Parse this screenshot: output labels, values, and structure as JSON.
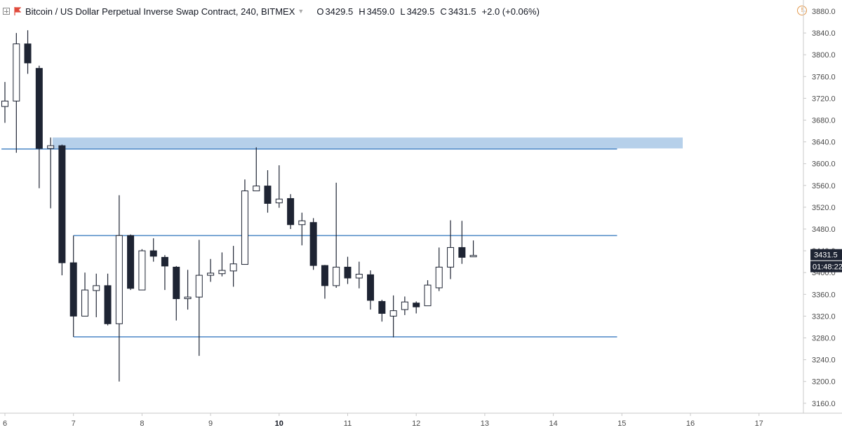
{
  "header": {
    "title": "Bitcoin / US Dollar Perpetual Inverse Swap Contract, 240, BITMEX",
    "o_label": "O",
    "o_value": "3429.5",
    "h_label": "H",
    "h_value": "3459.0",
    "l_label": "L",
    "l_value": "3429.5",
    "c_label": "C",
    "c_value": "3431.5",
    "change": "+2.0 (+0.06%)",
    "alert_icon_text": "!"
  },
  "price_tag": {
    "price": "3431.5",
    "countdown": "01:48:22",
    "value": 3431.5
  },
  "colors": {
    "bear": "#1e2433",
    "bull": "#ffffff",
    "line": "#4a86c5",
    "zone": "#b6d0ea",
    "accent_flag": "#e04a3c",
    "alert": "#e39a4e"
  },
  "chart_data": {
    "type": "candlestick",
    "title": "Bitcoin / US Dollar Perpetual Inverse Swap Contract, 240, BITMEX",
    "ylim": [
      3140,
      3900
    ],
    "y_ticks": [
      "3880.0",
      "3840.0",
      "3800.0",
      "3760.0",
      "3720.0",
      "3680.0",
      "3640.0",
      "3600.0",
      "3560.0",
      "3520.0",
      "3480.0",
      "3440.0",
      "3400.0",
      "3360.0",
      "3320.0",
      "3280.0",
      "3240.0",
      "3200.0",
      "3160.0"
    ],
    "y_tick_values": [
      3880,
      3840,
      3800,
      3760,
      3720,
      3680,
      3640,
      3600,
      3560,
      3520,
      3480,
      3440,
      3400,
      3360,
      3320,
      3280,
      3240,
      3200,
      3160
    ],
    "x_ticks": [
      {
        "label": "6",
        "x": 0.0,
        "bold": false
      },
      {
        "label": "7",
        "x": 1.0,
        "bold": false
      },
      {
        "label": "8",
        "x": 2.0,
        "bold": false
      },
      {
        "label": "9",
        "x": 3.0,
        "bold": false
      },
      {
        "label": "10",
        "x": 4.0,
        "bold": true
      },
      {
        "label": "11",
        "x": 5.0,
        "bold": false
      },
      {
        "label": "12",
        "x": 6.0,
        "bold": false
      },
      {
        "label": "13",
        "x": 7.0,
        "bold": false
      },
      {
        "label": "14",
        "x": 8.0,
        "bold": false
      },
      {
        "label": "15",
        "x": 9.0,
        "bold": false
      },
      {
        "label": "16",
        "x": 10.0,
        "bold": false
      },
      {
        "label": "17",
        "x": 11.0,
        "bold": false
      }
    ],
    "candles": [
      {
        "x": 0.0,
        "o": 3705,
        "h": 3750,
        "l": 3675,
        "c": 3715
      },
      {
        "x": 0.167,
        "o": 3715,
        "h": 3840,
        "l": 3620,
        "c": 3820
      },
      {
        "x": 0.333,
        "o": 3820,
        "h": 3845,
        "l": 3765,
        "c": 3785
      },
      {
        "x": 0.5,
        "o": 3775,
        "h": 3780,
        "l": 3555,
        "c": 3628
      },
      {
        "x": 0.667,
        "o": 3628,
        "h": 3648,
        "l": 3518,
        "c": 3633
      },
      {
        "x": 0.833,
        "o": 3633,
        "h": 3635,
        "l": 3395,
        "c": 3418
      },
      {
        "x": 1.0,
        "o": 3418,
        "h": 3468,
        "l": 3282,
        "c": 3320
      },
      {
        "x": 1.167,
        "o": 3320,
        "h": 3400,
        "l": 3320,
        "c": 3368
      },
      {
        "x": 1.333,
        "o": 3367,
        "h": 3398,
        "l": 3318,
        "c": 3376
      },
      {
        "x": 1.5,
        "o": 3376,
        "h": 3398,
        "l": 3303,
        "c": 3306
      },
      {
        "x": 1.667,
        "o": 3306,
        "h": 3542,
        "l": 3200,
        "c": 3468
      },
      {
        "x": 1.833,
        "o": 3468,
        "h": 3470,
        "l": 3368,
        "c": 3371
      },
      {
        "x": 2.0,
        "o": 3368,
        "h": 3443,
        "l": 3368,
        "c": 3440
      },
      {
        "x": 2.167,
        "o": 3440,
        "h": 3463,
        "l": 3420,
        "c": 3430
      },
      {
        "x": 2.333,
        "o": 3428,
        "h": 3432,
        "l": 3368,
        "c": 3412
      },
      {
        "x": 2.5,
        "o": 3410,
        "h": 3412,
        "l": 3312,
        "c": 3352
      },
      {
        "x": 2.667,
        "o": 3352,
        "h": 3405,
        "l": 3332,
        "c": 3355
      },
      {
        "x": 2.833,
        "o": 3355,
        "h": 3460,
        "l": 3247,
        "c": 3395
      },
      {
        "x": 3.0,
        "o": 3395,
        "h": 3425,
        "l": 3383,
        "c": 3399
      },
      {
        "x": 3.167,
        "o": 3398,
        "h": 3437,
        "l": 3393,
        "c": 3404
      },
      {
        "x": 3.333,
        "o": 3403,
        "h": 3449,
        "l": 3374,
        "c": 3416
      },
      {
        "x": 3.5,
        "o": 3415,
        "h": 3571,
        "l": 3415,
        "c": 3550
      },
      {
        "x": 3.667,
        "o": 3550,
        "h": 3630,
        "l": 3550,
        "c": 3559
      },
      {
        "x": 3.833,
        "o": 3559,
        "h": 3588,
        "l": 3510,
        "c": 3527
      },
      {
        "x": 4.0,
        "o": 3528,
        "h": 3597,
        "l": 3519,
        "c": 3535
      },
      {
        "x": 4.167,
        "o": 3536,
        "h": 3544,
        "l": 3480,
        "c": 3488
      },
      {
        "x": 4.333,
        "o": 3488,
        "h": 3510,
        "l": 3450,
        "c": 3495
      },
      {
        "x": 4.5,
        "o": 3492,
        "h": 3500,
        "l": 3405,
        "c": 3413
      },
      {
        "x": 4.667,
        "o": 3413,
        "h": 3414,
        "l": 3352,
        "c": 3376
      },
      {
        "x": 4.833,
        "o": 3376,
        "h": 3565,
        "l": 3372,
        "c": 3410
      },
      {
        "x": 5.0,
        "o": 3410,
        "h": 3429,
        "l": 3379,
        "c": 3390
      },
      {
        "x": 5.167,
        "o": 3390,
        "h": 3420,
        "l": 3371,
        "c": 3397
      },
      {
        "x": 5.333,
        "o": 3396,
        "h": 3404,
        "l": 3332,
        "c": 3349
      },
      {
        "x": 5.5,
        "o": 3347,
        "h": 3350,
        "l": 3310,
        "c": 3325
      },
      {
        "x": 5.667,
        "o": 3320,
        "h": 3358,
        "l": 3281,
        "c": 3330
      },
      {
        "x": 5.833,
        "o": 3332,
        "h": 3356,
        "l": 3322,
        "c": 3346
      },
      {
        "x": 6.0,
        "o": 3344,
        "h": 3347,
        "l": 3325,
        "c": 3337
      },
      {
        "x": 6.167,
        "o": 3339,
        "h": 3386,
        "l": 3339,
        "c": 3377
      },
      {
        "x": 6.333,
        "o": 3372,
        "h": 3446,
        "l": 3366,
        "c": 3410
      },
      {
        "x": 6.5,
        "o": 3410,
        "h": 3496,
        "l": 3388,
        "c": 3446
      },
      {
        "x": 6.667,
        "o": 3446,
        "h": 3495,
        "l": 3416,
        "c": 3428
      },
      {
        "x": 6.833,
        "o": 3429.5,
        "h": 3459,
        "l": 3429.5,
        "c": 3431.5
      }
    ],
    "zones": [
      {
        "from": 3628,
        "to": 3648
      }
    ],
    "hlines": [
      {
        "y": 3627,
        "x_from": -0.05,
        "x_to": 8.93
      },
      {
        "y": 3468,
        "x_from": 1.0,
        "x_to": 8.93
      },
      {
        "y": 3282,
        "x_from": 1.0,
        "x_to": 8.93
      }
    ]
  }
}
